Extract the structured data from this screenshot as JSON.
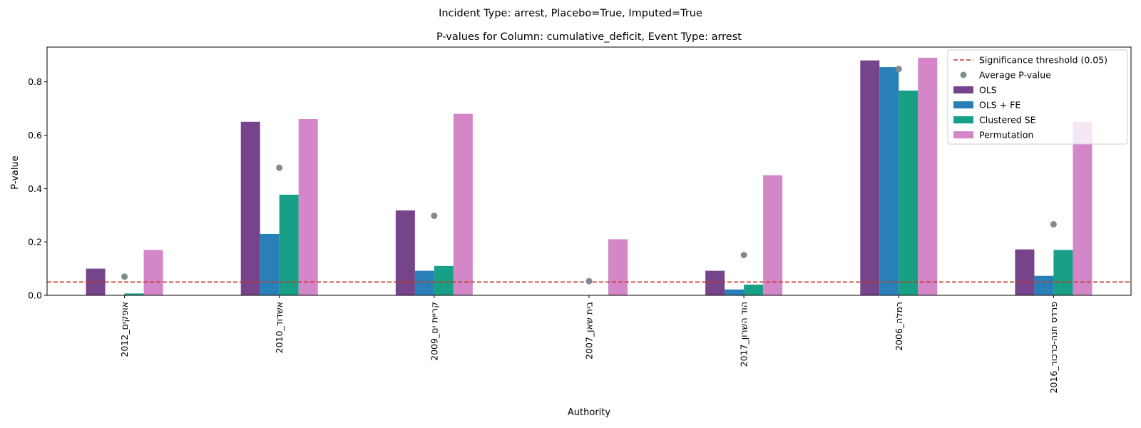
{
  "suptitle": "Incident Type: arrest, Placebo=True, Imputed=True",
  "chart_data": {
    "type": "bar",
    "title": "P-values for Column: cumulative_deficit, Event Type: arrest",
    "xlabel": "Authority",
    "ylabel": "P-value",
    "ylim": [
      0,
      0.93
    ],
    "yticks": [
      0.0,
      0.2,
      0.4,
      0.6,
      0.8
    ],
    "ytick_labels": [
      "0.0",
      "0.2",
      "0.4",
      "0.6",
      "0.8"
    ],
    "categories": [
      "אופקים_2012",
      "אשדוד_2010",
      "קריית ים_2009",
      "בית שאן_2007",
      "הוד השרון_2017",
      "רמלה_2006",
      "פרדס חנה-כרכור_2016"
    ],
    "series": [
      {
        "name": "OLS",
        "color": "#76448a",
        "values": [
          0.1,
          0.65,
          0.318,
          0.0,
          0.092,
          0.88,
          0.172
        ]
      },
      {
        "name": "OLS + FE",
        "color": "#2980b9",
        "values": [
          0.0,
          0.23,
          0.092,
          0.0,
          0.022,
          0.855,
          0.073
        ]
      },
      {
        "name": "Clustered SE",
        "color": "#17a085",
        "values": [
          0.007,
          0.377,
          0.11,
          0.0,
          0.04,
          0.767,
          0.17
        ]
      },
      {
        "name": "Permutation",
        "color": "#d386c8",
        "values": [
          0.17,
          0.66,
          0.68,
          0.21,
          0.45,
          0.89,
          0.65
        ]
      }
    ],
    "average": {
      "name": "Average P-value",
      "color": "#7f8c8d",
      "values": [
        0.07,
        0.478,
        0.298,
        0.053,
        0.151,
        0.848,
        0.266
      ]
    },
    "threshold": {
      "name": "Significance threshold (0.05)",
      "value": 0.05,
      "color": "#c0392b"
    },
    "legend_position": "top-right",
    "grid": false
  }
}
